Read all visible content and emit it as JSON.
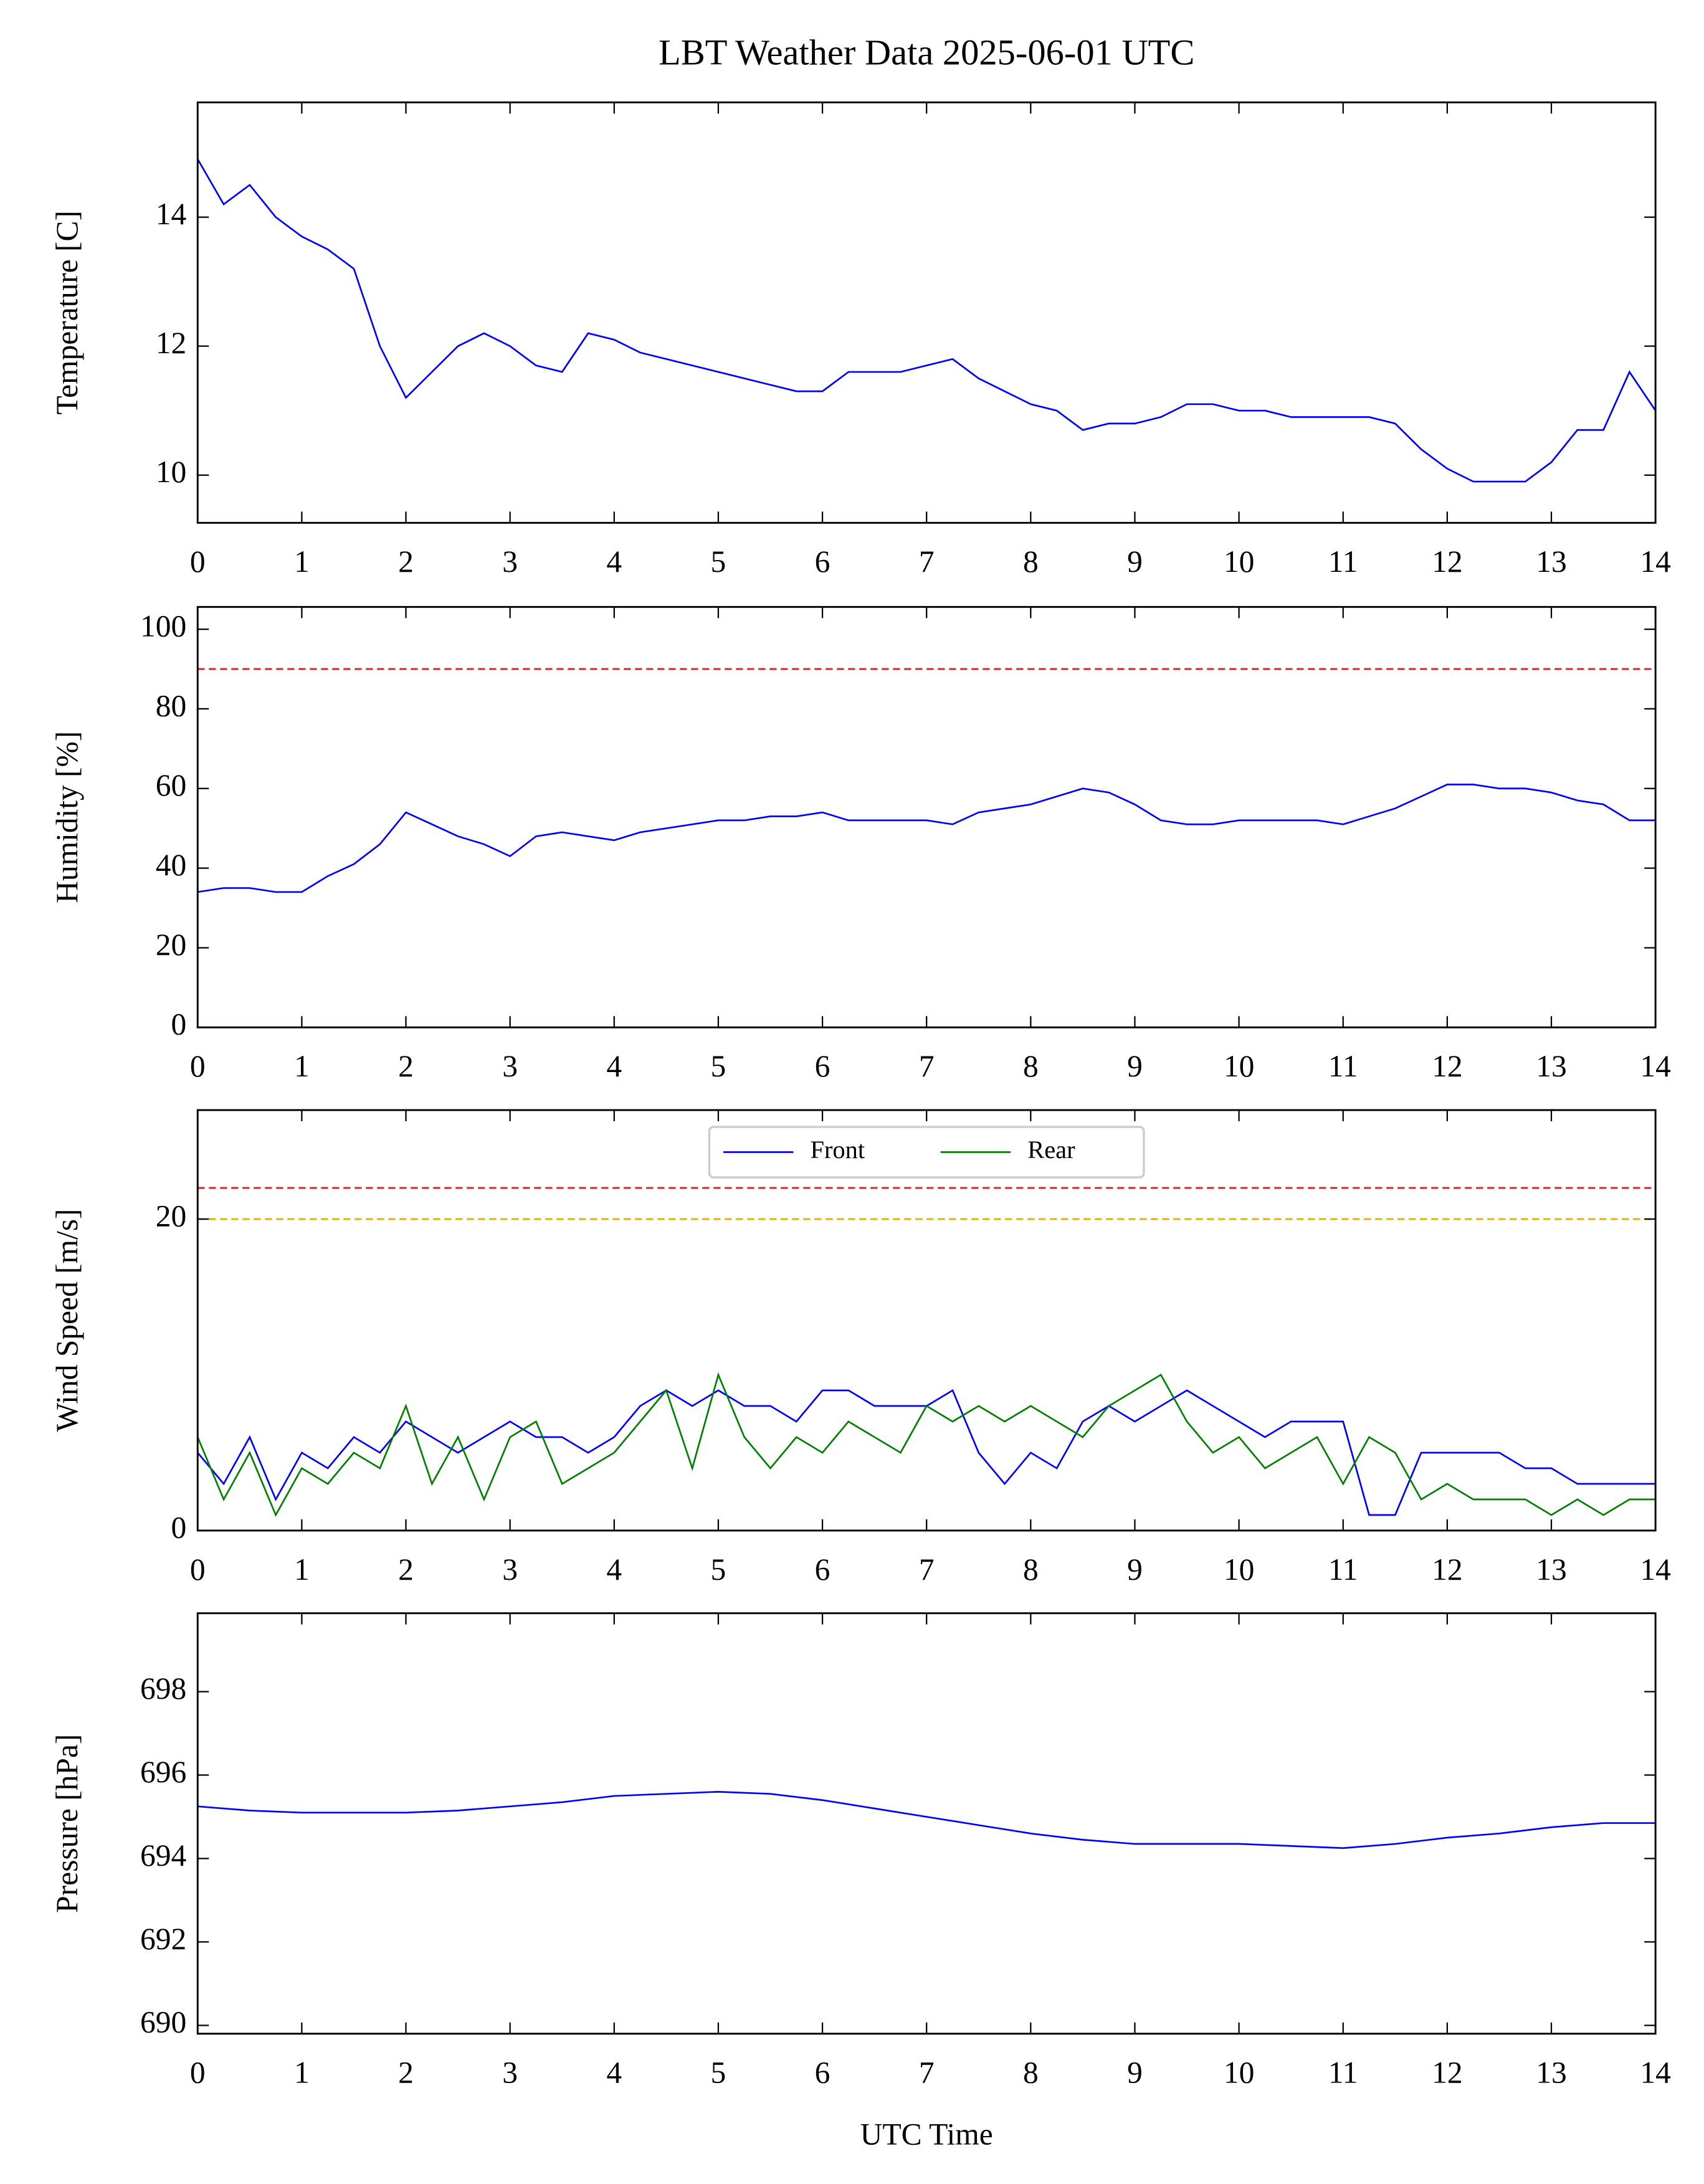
{
  "chart_data": [
    {
      "type": "line",
      "title": "LBT Weather Data 2025-06-01 UTC",
      "ylabel": "Temperature [C]",
      "x": [
        0,
        0.25,
        0.5,
        0.75,
        1,
        1.25,
        1.5,
        1.75,
        2,
        2.25,
        2.5,
        2.75,
        3,
        3.25,
        3.5,
        3.75,
        4,
        4.25,
        4.5,
        4.75,
        5,
        5.25,
        5.5,
        5.75,
        6,
        6.25,
        6.5,
        6.75,
        7,
        7.25,
        7.5,
        7.75,
        8,
        8.25,
        8.5,
        8.75,
        9,
        9.25,
        9.5,
        9.75,
        10,
        10.25,
        10.5,
        10.75,
        11,
        11.25,
        11.5,
        11.75,
        12,
        12.25,
        12.5,
        12.75,
        13,
        13.25,
        13.5,
        13.75,
        14
      ],
      "series": [
        {
          "color": "#0000ff",
          "values": [
            14.9,
            14.2,
            14.5,
            14.0,
            13.7,
            13.5,
            13.2,
            12.0,
            11.2,
            11.6,
            12.0,
            12.2,
            12.0,
            11.7,
            11.6,
            12.2,
            12.1,
            11.9,
            11.8,
            11.7,
            11.6,
            11.5,
            11.4,
            11.3,
            11.3,
            11.6,
            11.6,
            11.6,
            11.7,
            11.8,
            11.5,
            11.3,
            11.1,
            11.0,
            10.7,
            10.8,
            10.8,
            10.9,
            11.1,
            11.1,
            11.0,
            11.0,
            10.9,
            10.9,
            10.9,
            10.9,
            10.8,
            10.4,
            10.1,
            9.9,
            9.9,
            9.9,
            10.2,
            10.7,
            10.7,
            11.6,
            11.0
          ]
        }
      ],
      "xlim": [
        0,
        14
      ],
      "xticks": [
        0,
        1,
        2,
        3,
        4,
        5,
        6,
        7,
        8,
        9,
        10,
        11,
        12,
        13,
        14
      ],
      "ylim": [
        9.26,
        15.78
      ],
      "yticks": [
        10,
        12,
        14
      ]
    },
    {
      "type": "line",
      "ylabel": "Humidity [%]",
      "x": [
        0,
        0.25,
        0.5,
        0.75,
        1,
        1.25,
        1.5,
        1.75,
        2,
        2.25,
        2.5,
        2.75,
        3,
        3.25,
        3.5,
        3.75,
        4,
        4.25,
        4.5,
        4.75,
        5,
        5.25,
        5.5,
        5.75,
        6,
        6.25,
        6.5,
        6.75,
        7,
        7.25,
        7.5,
        7.75,
        8,
        8.25,
        8.5,
        8.75,
        9,
        9.25,
        9.5,
        9.75,
        10,
        10.25,
        10.5,
        10.75,
        11,
        11.25,
        11.5,
        11.75,
        12,
        12.25,
        12.5,
        12.75,
        13,
        13.25,
        13.5,
        13.75,
        14
      ],
      "series": [
        {
          "color": "#0000ff",
          "values": [
            34,
            35,
            35,
            34,
            34,
            38,
            41,
            46,
            54,
            51,
            48,
            46,
            43,
            48,
            49,
            48,
            47,
            49,
            50,
            51,
            52,
            52,
            53,
            53,
            54,
            52,
            52,
            52,
            52,
            51,
            54,
            55,
            56,
            58,
            60,
            59,
            56,
            52,
            51,
            51,
            52,
            52,
            52,
            52,
            51,
            53,
            55,
            58,
            61,
            61,
            60,
            60,
            59,
            57,
            56,
            52,
            52
          ]
        }
      ],
      "hlines": [
        {
          "value": 90,
          "color": "#d62728"
        }
      ],
      "xlim": [
        0,
        14
      ],
      "xticks": [
        0,
        1,
        2,
        3,
        4,
        5,
        6,
        7,
        8,
        9,
        10,
        11,
        12,
        13,
        14
      ],
      "ylim": [
        0,
        105.6
      ],
      "yticks": [
        0,
        20,
        40,
        60,
        80,
        100
      ]
    },
    {
      "type": "line",
      "ylabel": "Wind Speed [m/s]",
      "legend": "upper center",
      "x": [
        0,
        0.25,
        0.5,
        0.75,
        1,
        1.25,
        1.5,
        1.75,
        2,
        2.25,
        2.5,
        2.75,
        3,
        3.25,
        3.5,
        3.75,
        4,
        4.25,
        4.5,
        4.75,
        5,
        5.25,
        5.5,
        5.75,
        6,
        6.25,
        6.5,
        6.75,
        7,
        7.25,
        7.5,
        7.75,
        8,
        8.25,
        8.5,
        8.75,
        9,
        9.25,
        9.5,
        9.75,
        10,
        10.25,
        10.5,
        10.75,
        11,
        11.25,
        11.5,
        11.75,
        12,
        12.25,
        12.5,
        12.75,
        13,
        13.25,
        13.5,
        13.75,
        14
      ],
      "series": [
        {
          "name": "Front",
          "color": "#0000ff",
          "values": [
            5,
            3,
            6,
            2,
            5,
            4,
            6,
            5,
            7,
            6,
            5,
            6,
            7,
            6,
            6,
            5,
            6,
            8,
            9,
            8,
            9,
            8,
            8,
            7,
            9,
            9,
            8,
            8,
            8,
            9,
            5,
            3,
            5,
            4,
            7,
            8,
            7,
            8,
            9,
            8,
            7,
            6,
            7,
            7,
            7,
            1,
            1,
            5,
            5,
            5,
            5,
            4,
            4,
            3,
            3,
            3,
            3
          ]
        },
        {
          "name": "Rear",
          "color": "#008000",
          "values": [
            6,
            2,
            5,
            1,
            4,
            3,
            5,
            4,
            8,
            3,
            6,
            2,
            6,
            7,
            3,
            4,
            5,
            7,
            9,
            4,
            10,
            6,
            4,
            6,
            5,
            7,
            6,
            5,
            8,
            7,
            8,
            7,
            8,
            7,
            6,
            8,
            9,
            10,
            7,
            5,
            6,
            4,
            5,
            6,
            3,
            6,
            5,
            2,
            3,
            2,
            2,
            2,
            1,
            2,
            1,
            2,
            2
          ]
        }
      ],
      "hlines": [
        {
          "value": 22,
          "color": "#d62728"
        },
        {
          "value": 20,
          "color": "#e8b000"
        }
      ],
      "xlim": [
        0,
        14
      ],
      "xticks": [
        0,
        1,
        2,
        3,
        4,
        5,
        6,
        7,
        8,
        9,
        10,
        11,
        12,
        13,
        14
      ],
      "ylim": [
        0,
        27
      ],
      "yticks": [
        0,
        20
      ]
    },
    {
      "type": "line",
      "ylabel": "Pressure [hPa]",
      "xlabel": "UTC Time",
      "x": [
        0,
        0.5,
        1,
        1.5,
        2,
        2.5,
        3,
        3.5,
        4,
        4.5,
        5,
        5.5,
        6,
        6.5,
        7,
        7.5,
        8,
        8.5,
        9,
        9.5,
        10,
        10.5,
        11,
        11.5,
        12,
        12.5,
        13,
        13.5,
        14
      ],
      "series": [
        {
          "color": "#0000ff",
          "values": [
            695.25,
            695.15,
            695.1,
            695.1,
            695.1,
            695.15,
            695.25,
            695.35,
            695.5,
            695.55,
            695.6,
            695.55,
            695.4,
            695.2,
            695.0,
            694.8,
            694.6,
            694.45,
            694.35,
            694.35,
            694.35,
            694.3,
            694.25,
            694.35,
            694.5,
            694.6,
            694.75,
            694.85,
            694.85
          ]
        }
      ],
      "xlim": [
        0,
        14
      ],
      "xticks": [
        0,
        1,
        2,
        3,
        4,
        5,
        6,
        7,
        8,
        9,
        10,
        11,
        12,
        13,
        14
      ],
      "ylim": [
        689.8,
        699.88
      ],
      "yticks": [
        690,
        692,
        694,
        696,
        698
      ]
    }
  ]
}
